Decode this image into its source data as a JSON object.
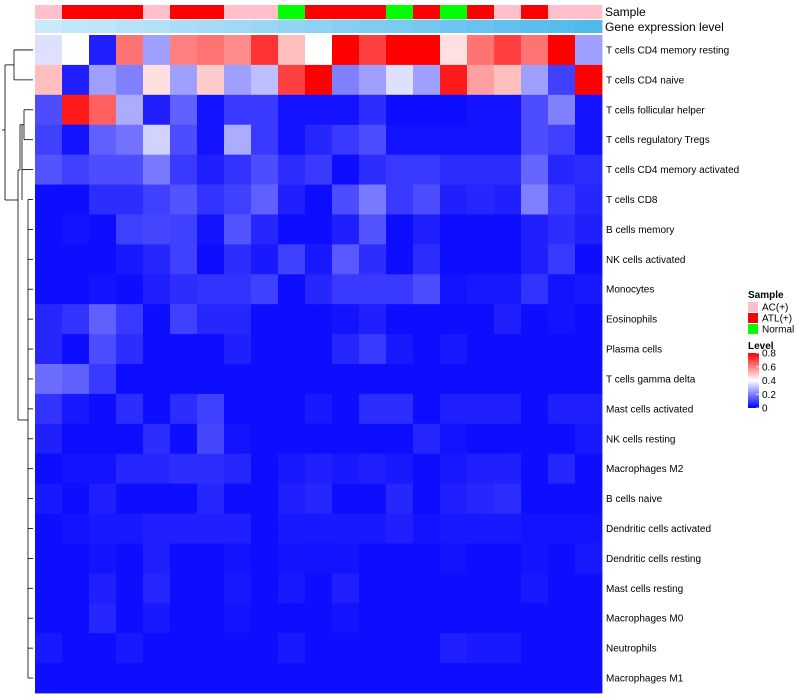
{
  "chart_data": {
    "type": "heatmap",
    "rows": [
      "T cells CD4 memory resting",
      "T cells CD4 naive",
      "T cells follicular helper",
      "T cells regulatory  Tregs",
      "T cells CD4 memory activated",
      "T cells CD8",
      "B cells memory",
      "NK cells activated",
      "Monocytes",
      "Eosinophils",
      "Plasma cells",
      "T cells gamma delta",
      "Mast cells activated",
      "NK cells resting",
      "Macrophages M2",
      "B cells naive",
      "Dendritic cells activated",
      "Dendritic cells resting",
      "Mast cells resting",
      "Macrophages M0",
      "Neutrophils",
      "Macrophages M1"
    ],
    "values": [
      [
        0.35,
        0.4,
        0.05,
        0.62,
        0.25,
        0.6,
        0.62,
        0.58,
        0.72,
        0.5,
        0.4,
        0.8,
        0.7,
        0.8,
        0.8,
        0.45,
        0.62,
        0.7,
        0.62,
        0.8,
        0.25
      ],
      [
        0.5,
        0.05,
        0.25,
        0.2,
        0.45,
        0.25,
        0.48,
        0.25,
        0.3,
        0.7,
        0.8,
        0.2,
        0.25,
        0.35,
        0.25,
        0.76,
        0.55,
        0.5,
        0.25,
        0.1,
        0.8
      ],
      [
        0.12,
        0.76,
        0.65,
        0.27,
        0.05,
        0.15,
        0.03,
        0.09,
        0.09,
        0.03,
        0.03,
        0.03,
        0.07,
        0.02,
        0.02,
        0.02,
        0.03,
        0.03,
        0.12,
        0.2,
        0.03
      ],
      [
        0.1,
        0.03,
        0.15,
        0.18,
        0.33,
        0.12,
        0.03,
        0.27,
        0.09,
        0.03,
        0.06,
        0.09,
        0.12,
        0.03,
        0.03,
        0.03,
        0.03,
        0.03,
        0.12,
        0.1,
        0.03
      ],
      [
        0.13,
        0.1,
        0.12,
        0.12,
        0.19,
        0.09,
        0.05,
        0.08,
        0.12,
        0.07,
        0.09,
        0.02,
        0.07,
        0.09,
        0.09,
        0.07,
        0.07,
        0.07,
        0.16,
        0.06,
        0.07
      ],
      [
        0.02,
        0.02,
        0.07,
        0.07,
        0.1,
        0.13,
        0.08,
        0.1,
        0.15,
        0.05,
        0.02,
        0.12,
        0.19,
        0.09,
        0.12,
        0.05,
        0.06,
        0.05,
        0.2,
        0.09,
        0.06
      ],
      [
        0.02,
        0.03,
        0.02,
        0.1,
        0.11,
        0.1,
        0.03,
        0.13,
        0.06,
        0.02,
        0.02,
        0.05,
        0.13,
        0.02,
        0.05,
        0.02,
        0.02,
        0.02,
        0.05,
        0.07,
        0.05
      ],
      [
        0.02,
        0.02,
        0.02,
        0.04,
        0.06,
        0.1,
        0.02,
        0.07,
        0.04,
        0.1,
        0.04,
        0.14,
        0.07,
        0.02,
        0.07,
        0.02,
        0.02,
        0.02,
        0.05,
        0.09,
        0.02
      ],
      [
        0.02,
        0.02,
        0.03,
        0.02,
        0.05,
        0.07,
        0.08,
        0.08,
        0.1,
        0.02,
        0.06,
        0.09,
        0.09,
        0.09,
        0.12,
        0.03,
        0.04,
        0.04,
        0.08,
        0.03,
        0.04
      ],
      [
        0.06,
        0.08,
        0.15,
        0.09,
        0.02,
        0.1,
        0.06,
        0.06,
        0.02,
        0.02,
        0.02,
        0.03,
        0.05,
        0.02,
        0.02,
        0.02,
        0.02,
        0.05,
        0.02,
        0.03,
        0.02
      ],
      [
        0.06,
        0.02,
        0.12,
        0.07,
        0.02,
        0.02,
        0.02,
        0.05,
        0.02,
        0.02,
        0.02,
        0.06,
        0.09,
        0.04,
        0.02,
        0.04,
        0.02,
        0.02,
        0.02,
        0.02,
        0.02
      ],
      [
        0.17,
        0.15,
        0.09,
        0.02,
        0.02,
        0.02,
        0.02,
        0.02,
        0.02,
        0.02,
        0.02,
        0.02,
        0.02,
        0.02,
        0.02,
        0.02,
        0.02,
        0.02,
        0.02,
        0.02,
        0.02
      ],
      [
        0.08,
        0.04,
        0.02,
        0.07,
        0.02,
        0.07,
        0.1,
        0.02,
        0.02,
        0.02,
        0.04,
        0.02,
        0.07,
        0.07,
        0.02,
        0.05,
        0.05,
        0.05,
        0.02,
        0.05,
        0.05
      ],
      [
        0.05,
        0.02,
        0.02,
        0.02,
        0.07,
        0.02,
        0.11,
        0.03,
        0.02,
        0.02,
        0.02,
        0.02,
        0.02,
        0.02,
        0.06,
        0.03,
        0.02,
        0.02,
        0.02,
        0.02,
        0.04
      ],
      [
        0.02,
        0.03,
        0.03,
        0.06,
        0.06,
        0.07,
        0.07,
        0.06,
        0.02,
        0.04,
        0.05,
        0.04,
        0.05,
        0.04,
        0.02,
        0.04,
        0.05,
        0.05,
        0.02,
        0.06,
        0.02
      ],
      [
        0.04,
        0.02,
        0.05,
        0.02,
        0.02,
        0.02,
        0.06,
        0.02,
        0.02,
        0.05,
        0.06,
        0.02,
        0.02,
        0.06,
        0.02,
        0.05,
        0.06,
        0.07,
        0.02,
        0.02,
        0.02
      ],
      [
        0.02,
        0.03,
        0.04,
        0.04,
        0.05,
        0.05,
        0.05,
        0.05,
        0.02,
        0.04,
        0.04,
        0.04,
        0.04,
        0.05,
        0.03,
        0.04,
        0.04,
        0.04,
        0.03,
        0.03,
        0.03
      ],
      [
        0.02,
        0.02,
        0.03,
        0.02,
        0.05,
        0.02,
        0.02,
        0.03,
        0.02,
        0.03,
        0.03,
        0.03,
        0.02,
        0.02,
        0.02,
        0.03,
        0.02,
        0.02,
        0.03,
        0.02,
        0.04
      ],
      [
        0.02,
        0.02,
        0.05,
        0.02,
        0.06,
        0.02,
        0.02,
        0.04,
        0.02,
        0.04,
        0.02,
        0.05,
        0.02,
        0.02,
        0.02,
        0.02,
        0.02,
        0.02,
        0.04,
        0.02,
        0.02
      ],
      [
        0.02,
        0.02,
        0.06,
        0.02,
        0.04,
        0.02,
        0.02,
        0.03,
        0.02,
        0.02,
        0.02,
        0.03,
        0.02,
        0.02,
        0.02,
        0.02,
        0.02,
        0.02,
        0.02,
        0.02,
        0.02
      ],
      [
        0.04,
        0.02,
        0.02,
        0.04,
        0.02,
        0.02,
        0.02,
        0.02,
        0.02,
        0.04,
        0.02,
        0.02,
        0.02,
        0.02,
        0.02,
        0.05,
        0.04,
        0.04,
        0.02,
        0.02,
        0.02
      ],
      [
        0.02,
        0.02,
        0.02,
        0.02,
        0.02,
        0.02,
        0.02,
        0.02,
        0.02,
        0.02,
        0.02,
        0.02,
        0.02,
        0.02,
        0.02,
        0.02,
        0.02,
        0.02,
        0.02,
        0.02,
        0.02
      ]
    ],
    "sample_groups": [
      "AC(+)",
      "ATL(+)",
      "ATL(+)",
      "ATL(+)",
      "AC(+)",
      "ATL(+)",
      "ATL(+)",
      "AC(+)",
      "AC(+)",
      "Normal",
      "ATL(+)",
      "ATL(+)",
      "ATL(+)",
      "Normal",
      "ATL(+)",
      "Normal",
      "ATL(+)",
      "AC(+)",
      "ATL(+)",
      "AC(+)",
      "AC(+)"
    ],
    "gene_expression_level": [
      0.05,
      0.1,
      0.14,
      0.19,
      0.24,
      0.29,
      0.33,
      0.38,
      0.43,
      0.48,
      0.52,
      0.57,
      0.62,
      0.67,
      0.71,
      0.76,
      0.81,
      0.86,
      0.9,
      0.95,
      1.0
    ],
    "scale_min": 0,
    "scale_max": 0.8,
    "color_stops": [
      {
        "value": 0,
        "color": "#0000ff"
      },
      {
        "value": 0.4,
        "color": "#ffffff"
      },
      {
        "value": 0.8,
        "color": "#ff0000"
      }
    ],
    "annotation_labels": {
      "sample": "Sample",
      "expression": "Gene expression level"
    },
    "legend": {
      "sample_title": "Sample",
      "sample_items": [
        {
          "label": "AC(+)",
          "color": "#ffc0cb"
        },
        {
          "label": "ATL(+)",
          "color": "#ff0000"
        },
        {
          "label": "Normal",
          "color": "#00ff00"
        }
      ],
      "level_title": "Level",
      "level_ticks": [
        {
          "value": 0.8,
          "label": "0.8"
        },
        {
          "value": 0.6,
          "label": "0.6"
        },
        {
          "value": 0.4,
          "label": "0.4"
        },
        {
          "value": 0.2,
          "label": "0.2"
        },
        {
          "value": 0,
          "label": "0"
        }
      ],
      "placement": "right"
    },
    "expression_gradient": {
      "low": "#d0ecfa",
      "high": "#4fb9ec"
    }
  }
}
